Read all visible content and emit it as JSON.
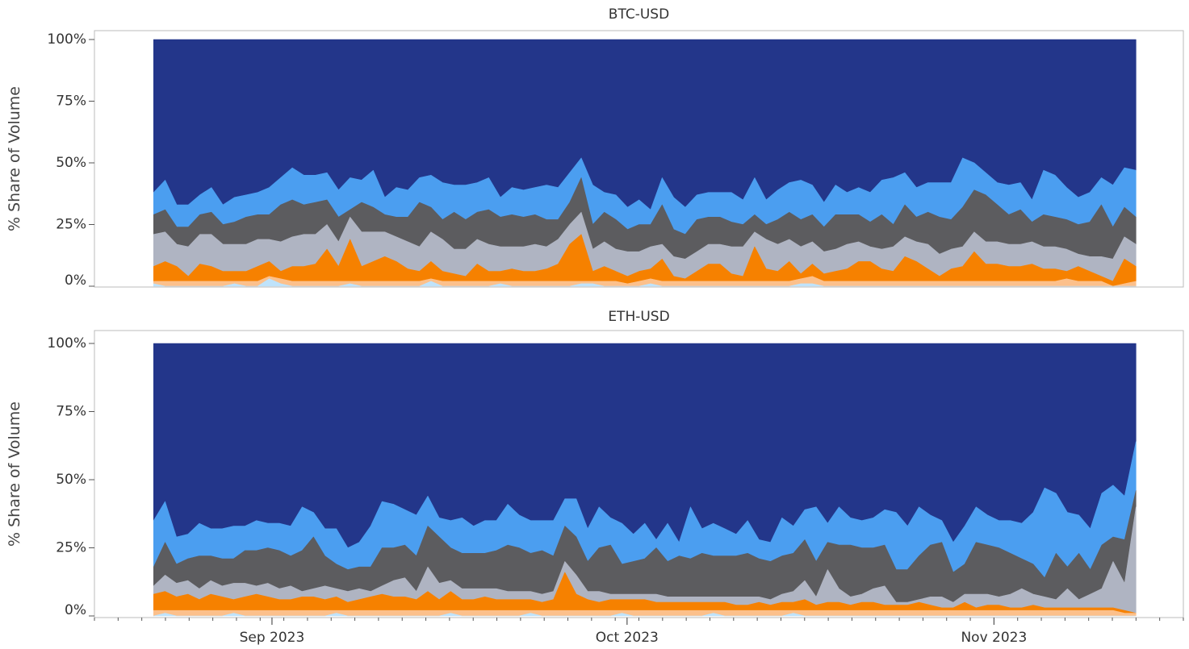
{
  "colors": {
    "series": [
      "#23368a",
      "#4b9ef0",
      "#5c5c5f",
      "#afb4c2",
      "#f68100",
      "#fcc08b",
      "#bfe3fb"
    ],
    "frame": "#bbbbbb",
    "axis": "#555555"
  },
  "x_axis": {
    "tick_labels": [
      "Sep 2023",
      "Oct 2023",
      "Nov 2023"
    ],
    "tick_dates": [
      "2023-09-01",
      "2023-10-01",
      "2023-11-01"
    ]
  },
  "chart_data": [
    {
      "type": "area",
      "stacked": "normalized",
      "title": "BTC-USD",
      "ylabel": "% Share of Volume",
      "yticks": [
        "0%",
        "25%",
        "50%",
        "75%",
        "100%"
      ],
      "ylim": [
        0,
        100
      ],
      "xlim": [
        "2023-08-17",
        "2023-11-17"
      ],
      "x_start": "2023-08-22",
      "x_end": "2023-11-13",
      "boundaries": [
        [
          38,
          43,
          33,
          33,
          37,
          40,
          33,
          36,
          37,
          38,
          40,
          44,
          48,
          45,
          45,
          46,
          39,
          44,
          43,
          47,
          36,
          40,
          39,
          44,
          45,
          42,
          41,
          41,
          42,
          44,
          36,
          40,
          39,
          40,
          41,
          40,
          46,
          52,
          41,
          38,
          37,
          32,
          35,
          31,
          44,
          36,
          32,
          37,
          38,
          38,
          38,
          35,
          44,
          35,
          39,
          42,
          43,
          41,
          34,
          41,
          38,
          40,
          38,
          43,
          44,
          46,
          40,
          42,
          42,
          42,
          52,
          50,
          46,
          42,
          41,
          42,
          35,
          47,
          45,
          40,
          36,
          38,
          44,
          41,
          48,
          47
        ],
        [
          29,
          31,
          24,
          24,
          29,
          30,
          25,
          26,
          28,
          29,
          29,
          33,
          35,
          33,
          34,
          35,
          28,
          31,
          34,
          32,
          29,
          28,
          28,
          34,
          32,
          27,
          30,
          27,
          30,
          31,
          28,
          29,
          28,
          29,
          27,
          27,
          34,
          44,
          25,
          30,
          27,
          23,
          25,
          25,
          33,
          23,
          21,
          27,
          28,
          28,
          26,
          25,
          29,
          25,
          27,
          30,
          27,
          29,
          24,
          29,
          29,
          29,
          26,
          29,
          25,
          33,
          28,
          30,
          28,
          27,
          32,
          39,
          37,
          33,
          29,
          31,
          26,
          29,
          28,
          27,
          25,
          26,
          33,
          24,
          32,
          28
        ],
        [
          21,
          22,
          17,
          16,
          21,
          21,
          17,
          17,
          17,
          19,
          19,
          18,
          20,
          21,
          21,
          25,
          18,
          28,
          22,
          22,
          22,
          20,
          18,
          16,
          22,
          19,
          15,
          15,
          19,
          17,
          16,
          16,
          16,
          17,
          16,
          19,
          25,
          30,
          15,
          18,
          15,
          14,
          14,
          16,
          17,
          12,
          11,
          14,
          17,
          17,
          16,
          16,
          22,
          19,
          17,
          19,
          16,
          18,
          14,
          15,
          17,
          18,
          16,
          15,
          16,
          20,
          18,
          17,
          13,
          15,
          16,
          22,
          18,
          18,
          17,
          17,
          18,
          16,
          16,
          15,
          13,
          12,
          12,
          11,
          20,
          17
        ],
        [
          8,
          10,
          8,
          4,
          9,
          8,
          6,
          6,
          6,
          8,
          10,
          6,
          8,
          8,
          9,
          15,
          8,
          19,
          8,
          10,
          12,
          10,
          7,
          6,
          10,
          6,
          5,
          4,
          9,
          6,
          6,
          7,
          6,
          6,
          7,
          9,
          17,
          21,
          6,
          8,
          6,
          4,
          6,
          7,
          11,
          4,
          3,
          6,
          9,
          9,
          5,
          4,
          16,
          7,
          6,
          10,
          5,
          9,
          5,
          6,
          7,
          10,
          10,
          7,
          6,
          12,
          10,
          7,
          4,
          7,
          8,
          14,
          9,
          9,
          8,
          8,
          9,
          7,
          7,
          6,
          8,
          6,
          4,
          2,
          11,
          8
        ],
        [
          2,
          2,
          2,
          2,
          2,
          2,
          2,
          2,
          2,
          2,
          4,
          3,
          2,
          2,
          2,
          2,
          2,
          2,
          2,
          2,
          2,
          2,
          2,
          2,
          3,
          2,
          2,
          2,
          2,
          2,
          2,
          2,
          2,
          2,
          2,
          2,
          2,
          2,
          2,
          2,
          2,
          1,
          2,
          3,
          2,
          2,
          2,
          2,
          2,
          2,
          2,
          2,
          2,
          2,
          2,
          2,
          3,
          4,
          2,
          2,
          2,
          2,
          2,
          2,
          2,
          2,
          2,
          2,
          2,
          2,
          2,
          2,
          2,
          2,
          2,
          2,
          2,
          2,
          2,
          3,
          2,
          2,
          2,
          0,
          1,
          2
        ],
        [
          1,
          0,
          0,
          0,
          0,
          0,
          0,
          1,
          0,
          0,
          3,
          1,
          0,
          0,
          0,
          0,
          0,
          1,
          0,
          0,
          0,
          0,
          0,
          0,
          2,
          0,
          0,
          0,
          0,
          0,
          1,
          0,
          0,
          0,
          0,
          0,
          0,
          1,
          1,
          0,
          0,
          0,
          0,
          1,
          0,
          0,
          0,
          0,
          0,
          0,
          0,
          0,
          0,
          0,
          0,
          0,
          1,
          1,
          0,
          0,
          0,
          0,
          0,
          0,
          0,
          0,
          0,
          0,
          0,
          0,
          0,
          0,
          0,
          0,
          0,
          0,
          0,
          0,
          0,
          0,
          0,
          0,
          0,
          0,
          0,
          0
        ]
      ]
    },
    {
      "type": "area",
      "stacked": "normalized",
      "title": "ETH-USD",
      "ylabel": "% Share of Volume",
      "yticks": [
        "0%",
        "25%",
        "50%",
        "75%",
        "100%"
      ],
      "ylim": [
        0,
        100
      ],
      "xlim": [
        "2023-08-17",
        "2023-11-17"
      ],
      "x_start": "2023-08-22",
      "x_end": "2023-11-13",
      "boundaries": [
        [
          35,
          42,
          29,
          30,
          34,
          32,
          32,
          33,
          33,
          35,
          34,
          34,
          33,
          40,
          38,
          32,
          32,
          25,
          27,
          33,
          42,
          41,
          39,
          37,
          44,
          36,
          35,
          36,
          33,
          35,
          35,
          41,
          37,
          35,
          35,
          35,
          43,
          43,
          32,
          40,
          36,
          34,
          30,
          34,
          28,
          34,
          27,
          40,
          32,
          34,
          32,
          30,
          35,
          28,
          27,
          36,
          33,
          39,
          40,
          34,
          40,
          36,
          35,
          36,
          39,
          38,
          33,
          40,
          37,
          35,
          27,
          33,
          40,
          37,
          35,
          35,
          34,
          38,
          47,
          45,
          38,
          37,
          32,
          45,
          48,
          44,
          64
        ],
        [
          18,
          27,
          19,
          21,
          22,
          22,
          21,
          21,
          24,
          24,
          25,
          24,
          22,
          24,
          29,
          22,
          19,
          17,
          18,
          18,
          25,
          25,
          26,
          22,
          33,
          29,
          25,
          23,
          23,
          23,
          24,
          26,
          25,
          23,
          24,
          22,
          33,
          29,
          20,
          25,
          26,
          19,
          20,
          21,
          25,
          20,
          22,
          21,
          23,
          22,
          22,
          22,
          23,
          21,
          20,
          22,
          23,
          28,
          20,
          27,
          26,
          26,
          25,
          25,
          26,
          17,
          17,
          22,
          26,
          27,
          16,
          19,
          27,
          26,
          25,
          23,
          21,
          19,
          14,
          23,
          18,
          23,
          17,
          26,
          29,
          28,
          46
        ],
        [
          11,
          15,
          12,
          13,
          10,
          13,
          11,
          12,
          12,
          11,
          12,
          10,
          11,
          9,
          10,
          11,
          10,
          9,
          10,
          9,
          11,
          13,
          14,
          9,
          18,
          12,
          13,
          10,
          10,
          10,
          10,
          9,
          9,
          9,
          8,
          9,
          20,
          15,
          9,
          9,
          8,
          8,
          8,
          8,
          8,
          7,
          7,
          7,
          7,
          7,
          7,
          7,
          7,
          7,
          6,
          8,
          9,
          13,
          7,
          17,
          10,
          7,
          8,
          10,
          11,
          5,
          5,
          6,
          7,
          7,
          5,
          8,
          8,
          8,
          7,
          8,
          10,
          8,
          7,
          6,
          10,
          6,
          8,
          10,
          20,
          12,
          40
        ],
        [
          8,
          9,
          7,
          8,
          6,
          8,
          7,
          6,
          7,
          8,
          7,
          6,
          6,
          7,
          7,
          6,
          7,
          5,
          6,
          7,
          8,
          7,
          7,
          6,
          9,
          6,
          9,
          6,
          6,
          7,
          6,
          6,
          6,
          6,
          5,
          6,
          16,
          8,
          6,
          5,
          6,
          6,
          6,
          6,
          5,
          5,
          5,
          5,
          5,
          5,
          5,
          4,
          4,
          5,
          4,
          5,
          5,
          6,
          4,
          5,
          5,
          4,
          5,
          5,
          4,
          4,
          4,
          5,
          4,
          3,
          3,
          5,
          3,
          4,
          4,
          3,
          3,
          4,
          3,
          3,
          3,
          3,
          3,
          3,
          3,
          2,
          1
        ],
        [
          2,
          2,
          2,
          2,
          2,
          2,
          2,
          2,
          2,
          2,
          2,
          2,
          2,
          2,
          2,
          2,
          2,
          2,
          2,
          2,
          2,
          2,
          2,
          2,
          2,
          2,
          2,
          2,
          2,
          2,
          2,
          2,
          2,
          2,
          2,
          2,
          2,
          2,
          2,
          2,
          2,
          2,
          2,
          2,
          2,
          2,
          2,
          2,
          2,
          2,
          2,
          2,
          2,
          2,
          2,
          2,
          2,
          2,
          2,
          2,
          2,
          2,
          2,
          2,
          2,
          2,
          2,
          2,
          2,
          2,
          2,
          2,
          2,
          2,
          2,
          2,
          2,
          2,
          2,
          2,
          2,
          2,
          2,
          2,
          2,
          1,
          1
        ],
        [
          0,
          1,
          0,
          0,
          0,
          0,
          0,
          1,
          0,
          0,
          0,
          0,
          0,
          0,
          0,
          0,
          1,
          0,
          0,
          0,
          0,
          0,
          0,
          0,
          0,
          0,
          1,
          0,
          0,
          0,
          0,
          0,
          0,
          1,
          0,
          0,
          0,
          0,
          0,
          0,
          0,
          1,
          0,
          0,
          0,
          0,
          0,
          0,
          0,
          1,
          0,
          0,
          0,
          0,
          0,
          0,
          1,
          0,
          0,
          0,
          0,
          0,
          0,
          0,
          0,
          0,
          0,
          0,
          0,
          0,
          0,
          0,
          0,
          0,
          0,
          0,
          0,
          0,
          0,
          0,
          0,
          0,
          0,
          0,
          0,
          0,
          0
        ]
      ]
    }
  ]
}
